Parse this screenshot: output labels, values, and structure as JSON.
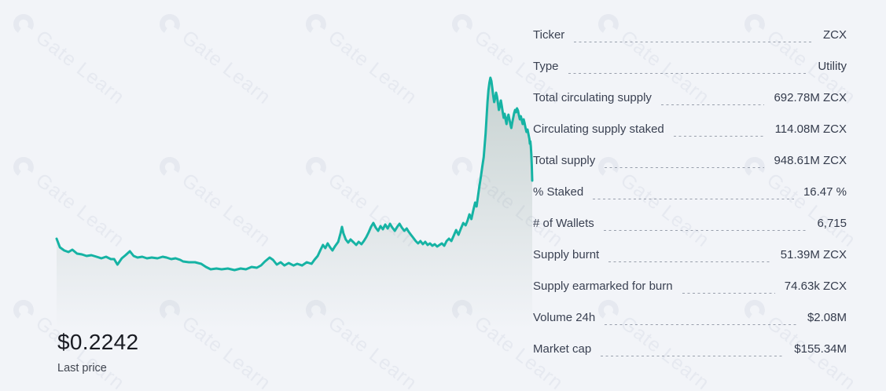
{
  "colors": {
    "accent_line": "#16b3a4",
    "area_fill": "#6e8c80",
    "background": "#f2f4f8",
    "text": "#3a4152",
    "leader_dash": "#99a0ad"
  },
  "watermark": {
    "text": "Gate Learn"
  },
  "price": {
    "last": "$0.2242",
    "caption": "Last price"
  },
  "stats": {
    "rows": [
      {
        "label": "Ticker",
        "value": "ZCX"
      },
      {
        "label": "Type",
        "value": "Utility"
      },
      {
        "label": "Total circulating supply",
        "value": "692.78M ZCX"
      },
      {
        "label": "Circulating supply staked",
        "value": "114.08M ZCX"
      },
      {
        "label": "Total supply",
        "value": "948.61M ZCX"
      },
      {
        "label": "% Staked",
        "value": "16.47 %"
      },
      {
        "label": "# of Wallets",
        "value": "6,715"
      },
      {
        "label": "Supply burnt",
        "value": "51.39M ZCX"
      },
      {
        "label": "Supply earmarked for burn",
        "value": "74.63k ZCX"
      },
      {
        "label": "Volume 24h",
        "value": "$2.08M"
      },
      {
        "label": "Market cap",
        "value": "$155.34M"
      }
    ]
  },
  "chart_data": {
    "type": "area",
    "title": "",
    "xlabel": "",
    "ylabel": "",
    "legend": "none",
    "grid": false,
    "axes_visible": false,
    "last_price_usd": 0.2242,
    "x_unit": "percent_of_time_range",
    "y_unit": "price_usd_estimated",
    "series": [
      {
        "name": "ZCX price",
        "points": [
          [
            0.0,
            0.1121
          ],
          [
            0.7,
            0.0954
          ],
          [
            1.6,
            0.0894
          ],
          [
            2.5,
            0.0863
          ],
          [
            3.3,
            0.0909
          ],
          [
            4.3,
            0.0833
          ],
          [
            5.3,
            0.0818
          ],
          [
            6.3,
            0.0787
          ],
          [
            7.3,
            0.0803
          ],
          [
            8.4,
            0.0772
          ],
          [
            9.4,
            0.0742
          ],
          [
            10.4,
            0.0772
          ],
          [
            11.4,
            0.0727
          ],
          [
            12.1,
            0.0727
          ],
          [
            12.8,
            0.0621
          ],
          [
            13.7,
            0.0742
          ],
          [
            14.5,
            0.0803
          ],
          [
            15.4,
            0.0878
          ],
          [
            16.2,
            0.0787
          ],
          [
            17.0,
            0.0757
          ],
          [
            18.0,
            0.0772
          ],
          [
            19.0,
            0.0742
          ],
          [
            20.0,
            0.0757
          ],
          [
            21.2,
            0.0742
          ],
          [
            22.3,
            0.0772
          ],
          [
            23.1,
            0.0757
          ],
          [
            24.1,
            0.0727
          ],
          [
            25.0,
            0.0742
          ],
          [
            26.0,
            0.0712
          ],
          [
            26.6,
            0.0681
          ],
          [
            27.8,
            0.0666
          ],
          [
            29.1,
            0.0666
          ],
          [
            30.4,
            0.0636
          ],
          [
            31.4,
            0.0576
          ],
          [
            32.4,
            0.053
          ],
          [
            33.6,
            0.0545
          ],
          [
            34.7,
            0.053
          ],
          [
            36.0,
            0.0545
          ],
          [
            37.4,
            0.0515
          ],
          [
            38.7,
            0.0545
          ],
          [
            39.8,
            0.053
          ],
          [
            41.0,
            0.0576
          ],
          [
            42.1,
            0.056
          ],
          [
            43.0,
            0.0606
          ],
          [
            43.8,
            0.0681
          ],
          [
            44.8,
            0.0757
          ],
          [
            45.5,
            0.0712
          ],
          [
            46.3,
            0.0621
          ],
          [
            47.1,
            0.0666
          ],
          [
            47.9,
            0.0605
          ],
          [
            48.8,
            0.0651
          ],
          [
            49.8,
            0.0605
          ],
          [
            50.6,
            0.0636
          ],
          [
            51.6,
            0.0605
          ],
          [
            52.6,
            0.0666
          ],
          [
            53.6,
            0.0636
          ],
          [
            54.2,
            0.0712
          ],
          [
            54.9,
            0.0787
          ],
          [
            55.5,
            0.0909
          ],
          [
            56.0,
            0.1
          ],
          [
            56.5,
            0.0939
          ],
          [
            57.0,
            0.103
          ],
          [
            57.5,
            0.0954
          ],
          [
            58.0,
            0.0894
          ],
          [
            58.5,
            0.0969
          ],
          [
            59.2,
            0.106
          ],
          [
            59.7,
            0.1227
          ],
          [
            60.0,
            0.1348
          ],
          [
            60.3,
            0.1227
          ],
          [
            60.8,
            0.1106
          ],
          [
            61.3,
            0.1045
          ],
          [
            61.8,
            0.1106
          ],
          [
            62.5,
            0.1045
          ],
          [
            63.0,
            0.1
          ],
          [
            63.5,
            0.106
          ],
          [
            64.1,
            0.1015
          ],
          [
            64.6,
            0.1076
          ],
          [
            65.1,
            0.1151
          ],
          [
            65.6,
            0.1242
          ],
          [
            66.1,
            0.1348
          ],
          [
            66.6,
            0.1424
          ],
          [
            67.1,
            0.1333
          ],
          [
            67.6,
            0.1272
          ],
          [
            68.1,
            0.1363
          ],
          [
            68.6,
            0.1303
          ],
          [
            69.1,
            0.1394
          ],
          [
            69.6,
            0.1318
          ],
          [
            70.1,
            0.1409
          ],
          [
            70.6,
            0.1333
          ],
          [
            71.1,
            0.1272
          ],
          [
            71.6,
            0.1348
          ],
          [
            72.1,
            0.1409
          ],
          [
            72.6,
            0.1333
          ],
          [
            73.1,
            0.1272
          ],
          [
            73.6,
            0.1318
          ],
          [
            74.0,
            0.1257
          ],
          [
            74.5,
            0.1197
          ],
          [
            75.0,
            0.1136
          ],
          [
            75.5,
            0.1076
          ],
          [
            76.0,
            0.103
          ],
          [
            76.5,
            0.1076
          ],
          [
            77.0,
            0.1015
          ],
          [
            77.5,
            0.106
          ],
          [
            78.0,
            0.1
          ],
          [
            78.5,
            0.103
          ],
          [
            79.0,
            0.0985
          ],
          [
            79.5,
            0.1015
          ],
          [
            80.0,
            0.0969
          ],
          [
            80.5,
            0.1
          ],
          [
            81.0,
            0.103
          ],
          [
            81.5,
            0.0985
          ],
          [
            82.0,
            0.1076
          ],
          [
            82.5,
            0.1121
          ],
          [
            83.0,
            0.1076
          ],
          [
            83.5,
            0.1182
          ],
          [
            84.0,
            0.1287
          ],
          [
            84.5,
            0.1197
          ],
          [
            85.0,
            0.1318
          ],
          [
            85.5,
            0.1424
          ],
          [
            86.0,
            0.1378
          ],
          [
            86.4,
            0.1469
          ],
          [
            86.8,
            0.159
          ],
          [
            87.2,
            0.15
          ],
          [
            87.6,
            0.1666
          ],
          [
            88.0,
            0.1818
          ],
          [
            88.3,
            0.1742
          ],
          [
            88.6,
            0.1939
          ],
          [
            88.9,
            0.2136
          ],
          [
            89.2,
            0.2318
          ],
          [
            89.5,
            0.2515
          ],
          [
            89.8,
            0.2696
          ],
          [
            90.0,
            0.2924
          ],
          [
            90.2,
            0.3151
          ],
          [
            90.4,
            0.3454
          ],
          [
            90.6,
            0.3757
          ],
          [
            90.8,
            0.3984
          ],
          [
            91.0,
            0.4135
          ],
          [
            91.2,
            0.4226
          ],
          [
            91.4,
            0.4166
          ],
          [
            91.6,
            0.4029
          ],
          [
            91.8,
            0.3878
          ],
          [
            92.0,
            0.3757
          ],
          [
            92.2,
            0.3833
          ],
          [
            92.4,
            0.3938
          ],
          [
            92.6,
            0.3863
          ],
          [
            92.8,
            0.3742
          ],
          [
            93.0,
            0.3605
          ],
          [
            93.2,
            0.3681
          ],
          [
            93.4,
            0.3787
          ],
          [
            93.6,
            0.3681
          ],
          [
            93.8,
            0.356
          ],
          [
            94.0,
            0.3454
          ],
          [
            94.2,
            0.353
          ],
          [
            94.4,
            0.3424
          ],
          [
            94.6,
            0.3333
          ],
          [
            94.8,
            0.3454
          ],
          [
            95.0,
            0.3514
          ],
          [
            95.2,
            0.3424
          ],
          [
            95.4,
            0.3333
          ],
          [
            95.6,
            0.3257
          ],
          [
            95.8,
            0.3363
          ],
          [
            96.0,
            0.3454
          ],
          [
            96.2,
            0.3545
          ],
          [
            96.4,
            0.3605
          ],
          [
            96.6,
            0.356
          ],
          [
            96.8,
            0.3636
          ],
          [
            97.0,
            0.359
          ],
          [
            97.2,
            0.3499
          ],
          [
            97.4,
            0.3424
          ],
          [
            97.6,
            0.3484
          ],
          [
            97.8,
            0.3408
          ],
          [
            98.0,
            0.3333
          ],
          [
            98.2,
            0.3424
          ],
          [
            98.4,
            0.3348
          ],
          [
            98.6,
            0.3257
          ],
          [
            98.8,
            0.3181
          ],
          [
            99.0,
            0.3227
          ],
          [
            99.2,
            0.3136
          ],
          [
            99.4,
            0.3045
          ],
          [
            99.5,
            0.2954
          ],
          [
            99.6,
            0.2999
          ],
          [
            99.7,
            0.2908
          ],
          [
            99.8,
            0.2757
          ],
          [
            99.9,
            0.2545
          ],
          [
            100.0,
            0.2242
          ]
        ]
      }
    ]
  }
}
